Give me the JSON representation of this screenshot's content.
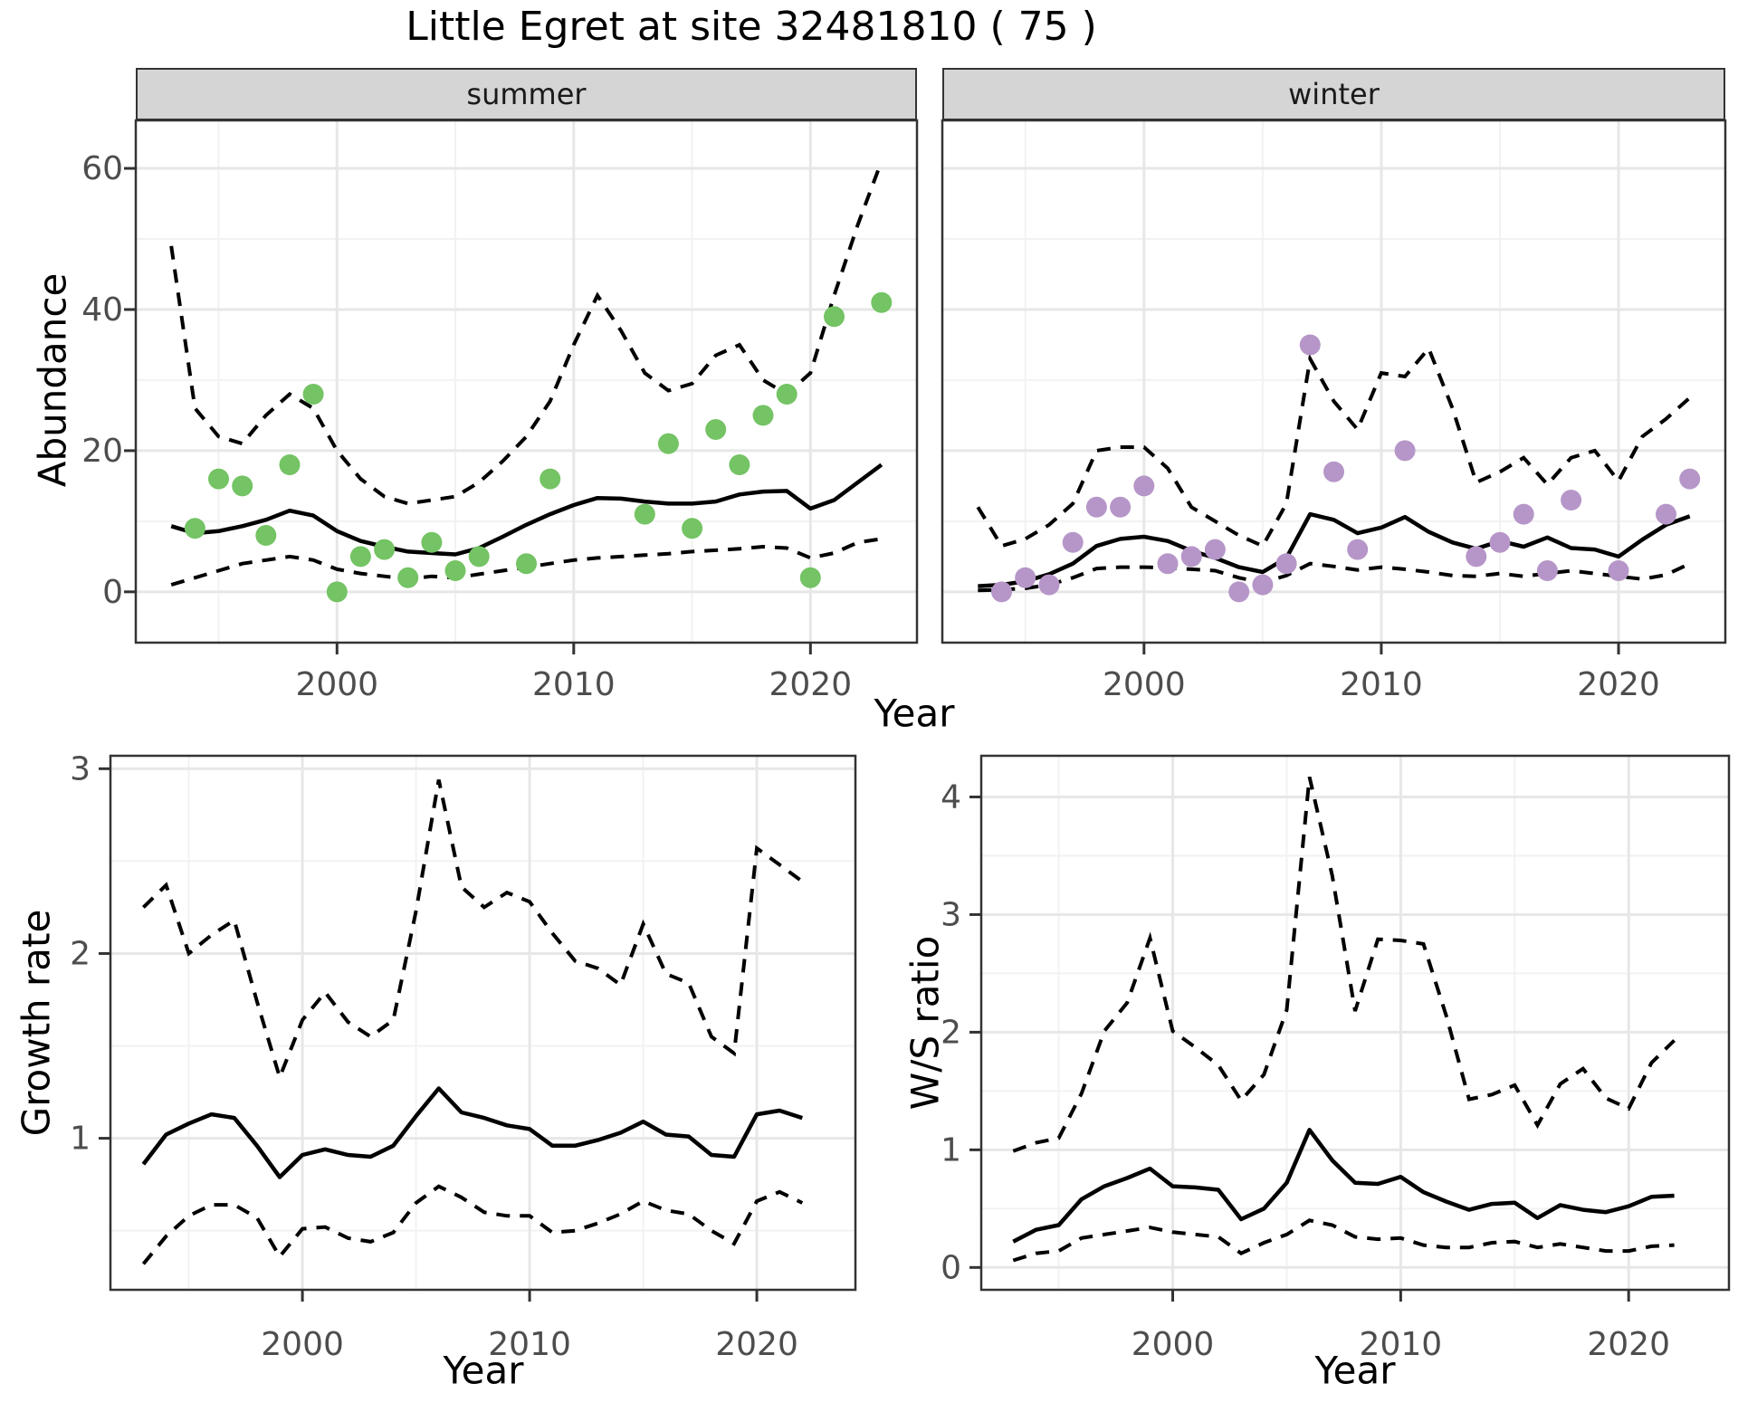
{
  "title": "Little Egret at site 32481810 ( 75 )",
  "facets": {
    "summer": "summer",
    "winter": "winter"
  },
  "axis_titles": {
    "abundance": "Abundance",
    "year": "Year",
    "growth_rate": "Growth rate",
    "ws_ratio": "W/S ratio"
  },
  "colors": {
    "summer_point": "#74c364",
    "winter_point": "#b696c8",
    "line": "#000000",
    "grid_major": "#e7e7e7",
    "grid_minor": "#f2f2f2",
    "strip_bg": "#d5d5d5",
    "panel_border": "#333333",
    "tick_text": "#4d4d4d"
  },
  "chart_data": [
    {
      "id": "abundance_summer",
      "type": "line",
      "facet": "summer",
      "xlabel": "Year",
      "ylabel": "Abundance",
      "xlim": [
        1991.5,
        2024.5
      ],
      "ylim": [
        -7.2,
        66.8
      ],
      "x_ticks": [
        2000,
        2010,
        2020
      ],
      "x_minor": [
        1995,
        2005,
        2015
      ],
      "y_ticks": [
        0,
        20,
        40,
        60
      ],
      "y_minor": [
        10,
        30,
        50
      ],
      "start_year": 1993,
      "fit": [
        9.3,
        8.3,
        8.6,
        9.3,
        10.2,
        11.5,
        10.8,
        8.6,
        7.2,
        6.4,
        5.7,
        5.5,
        5.3,
        6.2,
        7.8,
        9.5,
        11.0,
        12.3,
        13.3,
        13.2,
        12.8,
        12.5,
        12.5,
        12.8,
        13.8,
        14.2,
        14.3,
        11.8,
        13.0,
        15.5,
        18.0
      ],
      "upper_ci": [
        49,
        26,
        22,
        21,
        25,
        28,
        26,
        20,
        16,
        13.5,
        12.5,
        13,
        13.5,
        15.5,
        18.5,
        22,
        27,
        35,
        42,
        37,
        31,
        28.5,
        29.5,
        33.5,
        35,
        30,
        28,
        31,
        42,
        52,
        61
      ],
      "lower_ci": [
        1,
        2,
        3,
        4,
        4.5,
        5,
        4.5,
        3.2,
        2.6,
        2.2,
        1.8,
        2.2,
        2,
        2.5,
        3,
        3.5,
        4,
        4.5,
        4.8,
        5,
        5.2,
        5.4,
        5.7,
        5.9,
        6.1,
        6.4,
        6.2,
        4.8,
        5.5,
        7,
        7.5
      ],
      "observations": [
        [
          1994,
          9
        ],
        [
          1995,
          16
        ],
        [
          1996,
          15
        ],
        [
          1997,
          8
        ],
        [
          1998,
          18
        ],
        [
          1999,
          28
        ],
        [
          2000,
          0
        ],
        [
          2001,
          5
        ],
        [
          2002,
          6
        ],
        [
          2003,
          2
        ],
        [
          2004,
          7
        ],
        [
          2005,
          3
        ],
        [
          2006,
          5
        ],
        [
          2008,
          4
        ],
        [
          2009,
          16
        ],
        [
          2013,
          11
        ],
        [
          2014,
          21
        ],
        [
          2015,
          9
        ],
        [
          2016,
          23
        ],
        [
          2017,
          18
        ],
        [
          2018,
          25
        ],
        [
          2019,
          28
        ],
        [
          2020,
          2
        ],
        [
          2021,
          39
        ],
        [
          2023,
          41
        ]
      ],
      "point_color": "#74c364"
    },
    {
      "id": "abundance_winter",
      "type": "line",
      "facet": "winter",
      "xlabel": "Year",
      "ylabel": "Abundance",
      "xlim": [
        1991.5,
        2024.5
      ],
      "ylim": [
        -7.2,
        66.8
      ],
      "x_ticks": [
        2000,
        2010,
        2020
      ],
      "x_minor": [
        1995,
        2005,
        2015
      ],
      "y_ticks": [
        0,
        20,
        40,
        60
      ],
      "y_minor": [
        10,
        30,
        50
      ],
      "start_year": 1993,
      "fit": [
        0.8,
        1,
        1.5,
        2.5,
        4,
        6.5,
        7.5,
        7.8,
        7.2,
        5.8,
        4.8,
        3.5,
        2.8,
        4.8,
        11,
        10.2,
        8.3,
        9.1,
        10.6,
        8.5,
        7,
        6.1,
        7.2,
        6.4,
        7.7,
        6.2,
        6,
        5,
        7.4,
        9.5,
        10.7
      ],
      "upper_ci": [
        12,
        6.5,
        7.5,
        9.5,
        12.5,
        20,
        20.5,
        20.5,
        17.5,
        12,
        10,
        8,
        6.5,
        12.5,
        33,
        27,
        23,
        31,
        30.5,
        34.5,
        26,
        15.5,
        17,
        19,
        15.2,
        19,
        20,
        15.7,
        22,
        24.5,
        27.5
      ],
      "lower_ci": [
        0.2,
        0.3,
        0.5,
        1,
        2,
        3.3,
        3.5,
        3.5,
        3.4,
        3.2,
        3,
        2,
        1.3,
        2.3,
        4,
        3.6,
        3.1,
        3.5,
        3.2,
        2.8,
        2.3,
        2.2,
        2.6,
        2.2,
        2.6,
        3,
        2.6,
        2.2,
        1.8,
        2.4,
        4
      ],
      "observations": [
        [
          1994,
          0
        ],
        [
          1995,
          2
        ],
        [
          1996,
          1
        ],
        [
          1997,
          7
        ],
        [
          1998,
          12
        ],
        [
          1999,
          12
        ],
        [
          2000,
          15
        ],
        [
          2001,
          4
        ],
        [
          2002,
          5
        ],
        [
          2003,
          6
        ],
        [
          2004,
          0
        ],
        [
          2005,
          1
        ],
        [
          2006,
          4
        ],
        [
          2007,
          35
        ],
        [
          2008,
          17
        ],
        [
          2009,
          6
        ],
        [
          2011,
          20
        ],
        [
          2014,
          5
        ],
        [
          2015,
          7
        ],
        [
          2016,
          11
        ],
        [
          2017,
          3
        ],
        [
          2018,
          13
        ],
        [
          2020,
          3
        ],
        [
          2022,
          11
        ],
        [
          2023,
          16
        ]
      ],
      "point_color": "#b696c8"
    },
    {
      "id": "growth_rate",
      "type": "line",
      "xlabel": "Year",
      "ylabel": "Growth rate",
      "xlim": [
        1991.55,
        2024.34
      ],
      "ylim": [
        0.18,
        3.07
      ],
      "x_ticks": [
        2000,
        2010,
        2020
      ],
      "x_minor": [
        1995,
        2005,
        2015
      ],
      "y_ticks": [
        1,
        2,
        3
      ],
      "y_minor": [
        0.5,
        1.5,
        2.5
      ],
      "start_year": 1993,
      "fit": [
        0.86,
        1.02,
        1.08,
        1.13,
        1.11,
        0.96,
        0.79,
        0.91,
        0.94,
        0.91,
        0.9,
        0.96,
        1.12,
        1.27,
        1.14,
        1.11,
        1.07,
        1.05,
        0.96,
        0.96,
        0.99,
        1.03,
        1.09,
        1.02,
        1.01,
        0.91,
        0.9,
        1.13,
        1.15,
        1.11
      ],
      "upper_ci": [
        2.25,
        2.37,
        2.0,
        2.1,
        2.18,
        1.74,
        1.33,
        1.64,
        1.79,
        1.63,
        1.55,
        1.64,
        2.23,
        2.94,
        2.36,
        2.25,
        2.33,
        2.28,
        2.11,
        1.96,
        1.92,
        1.83,
        2.16,
        1.89,
        1.84,
        1.55,
        1.46,
        2.57,
        2.48,
        2.39
      ],
      "lower_ci": [
        0.32,
        0.47,
        0.58,
        0.64,
        0.64,
        0.57,
        0.36,
        0.51,
        0.52,
        0.46,
        0.44,
        0.49,
        0.65,
        0.74,
        0.68,
        0.6,
        0.58,
        0.58,
        0.49,
        0.5,
        0.54,
        0.59,
        0.66,
        0.61,
        0.59,
        0.5,
        0.43,
        0.66,
        0.71,
        0.65
      ],
      "observations": [],
      "point_color": "#000000"
    },
    {
      "id": "ws_ratio",
      "type": "line",
      "xlabel": "Year",
      "ylabel": "W/S ratio",
      "xlim": [
        1991.6,
        2024.4
      ],
      "ylim": [
        -0.19,
        4.35
      ],
      "x_ticks": [
        2000,
        2010,
        2020
      ],
      "x_minor": [
        1995,
        2005,
        2015
      ],
      "y_ticks": [
        0,
        1,
        2,
        3,
        4
      ],
      "y_minor": [
        0.5,
        1.5,
        2.5,
        3.5
      ],
      "start_year": 1993,
      "fit": [
        0.22,
        0.32,
        0.36,
        0.58,
        0.69,
        0.76,
        0.84,
        0.69,
        0.68,
        0.66,
        0.41,
        0.5,
        0.72,
        1.17,
        0.91,
        0.72,
        0.71,
        0.77,
        0.64,
        0.56,
        0.49,
        0.54,
        0.55,
        0.42,
        0.53,
        0.49,
        0.47,
        0.52,
        0.6,
        0.61
      ],
      "upper_ci": [
        0.99,
        1.06,
        1.1,
        1.48,
        2.01,
        2.25,
        2.8,
        2.01,
        1.87,
        1.72,
        1.42,
        1.64,
        2.19,
        4.17,
        3.33,
        2.18,
        2.79,
        2.78,
        2.75,
        2.14,
        1.43,
        1.47,
        1.55,
        1.21,
        1.56,
        1.69,
        1.44,
        1.35,
        1.74,
        1.93
      ],
      "lower_ci": [
        0.06,
        0.12,
        0.14,
        0.25,
        0.28,
        0.31,
        0.34,
        0.3,
        0.28,
        0.26,
        0.12,
        0.21,
        0.28,
        0.4,
        0.36,
        0.26,
        0.24,
        0.25,
        0.19,
        0.17,
        0.17,
        0.21,
        0.22,
        0.17,
        0.2,
        0.17,
        0.14,
        0.14,
        0.18,
        0.19
      ],
      "observations": [],
      "point_color": "#000000"
    }
  ]
}
